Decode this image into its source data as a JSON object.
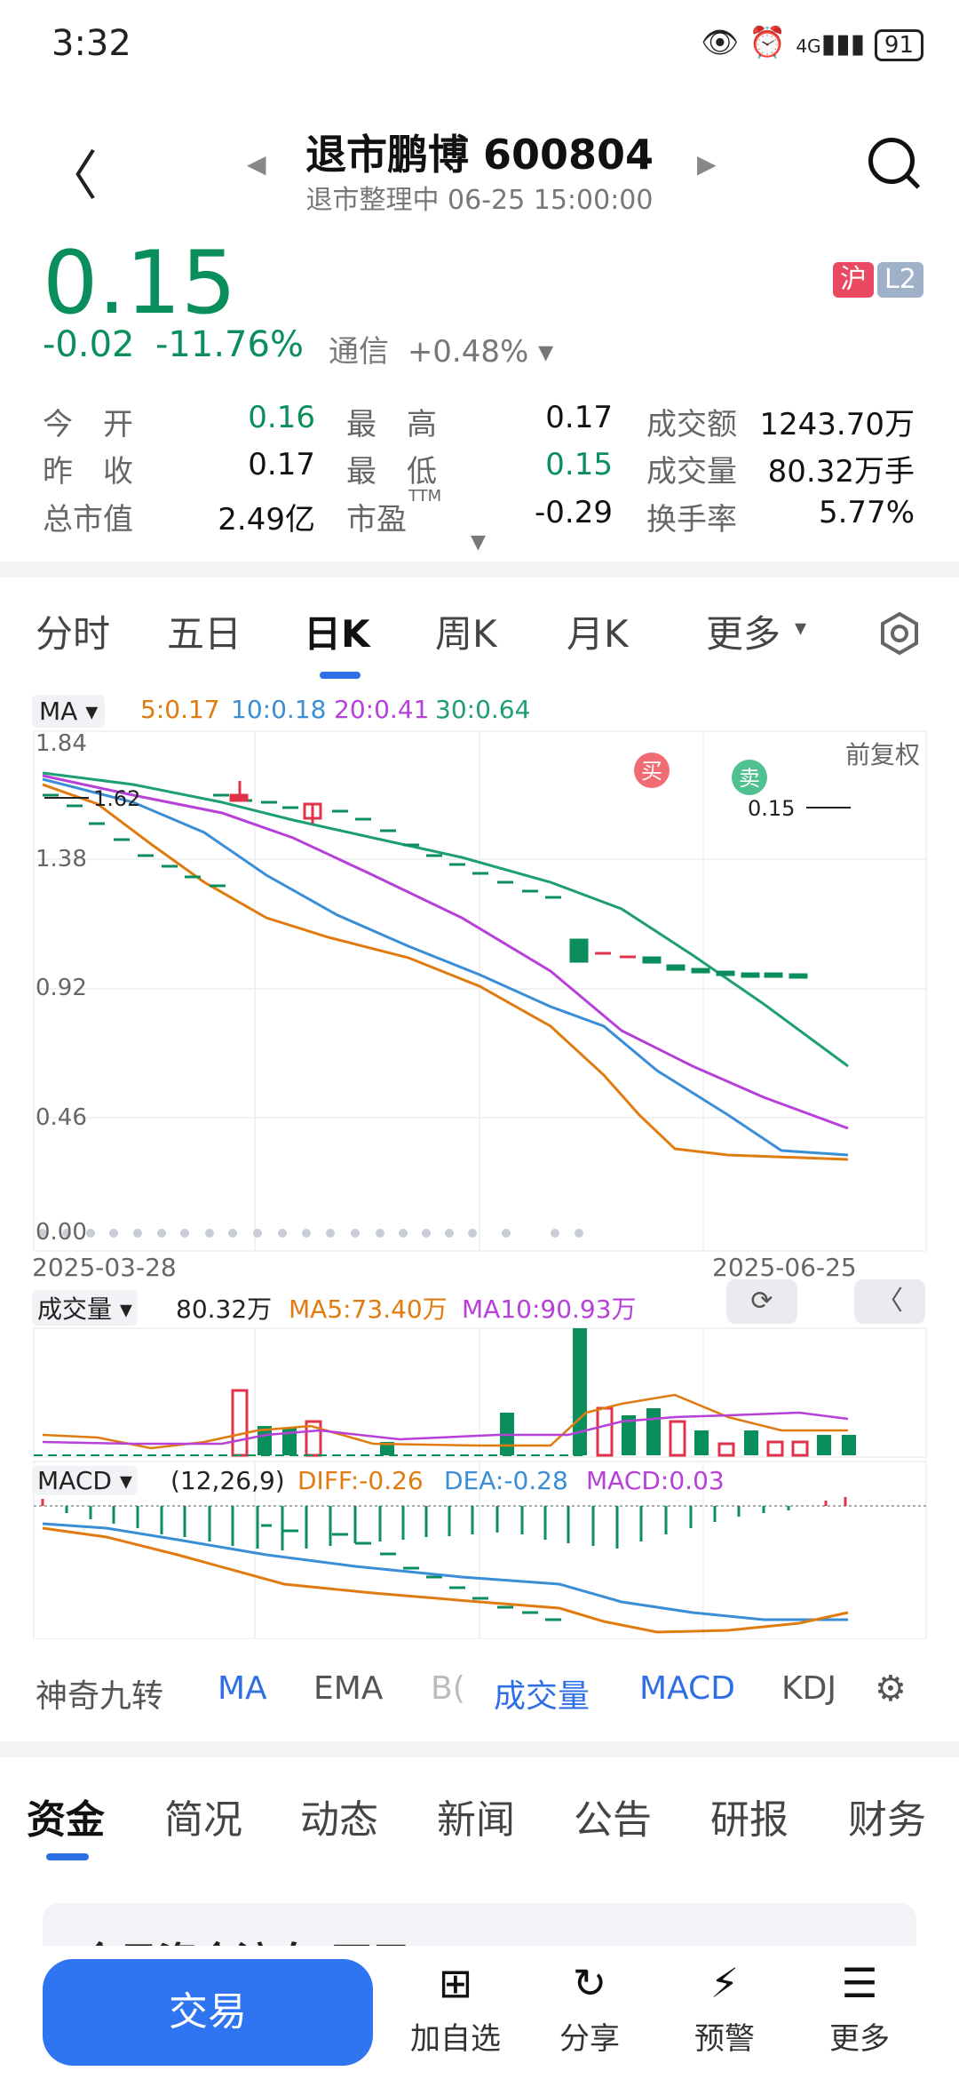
{
  "status": {
    "time": "3:32",
    "battery": "91",
    "signal": "4G"
  },
  "header": {
    "name_code": "退市鹏博 600804",
    "sub": "退市整理中 06-25 15:00:00"
  },
  "quote": {
    "price": "0.15",
    "change": "-0.02",
    "change_pct": "-11.76%",
    "related": "通信",
    "related_pct": "+0.48%",
    "badge_market": "沪",
    "badge_level": "L2"
  },
  "stats": [
    {
      "label": "今　开",
      "value": "0.16",
      "color": "green"
    },
    {
      "label": "最　高",
      "value": "0.17",
      "color": "black"
    },
    {
      "label": "成交额",
      "value": "1243.70万",
      "color": "black"
    },
    {
      "label": "昨　收",
      "value": "0.17",
      "color": "black"
    },
    {
      "label": "最　低",
      "value": "0.15",
      "color": "green"
    },
    {
      "label": "成交量",
      "value": "80.32万手",
      "color": "black"
    },
    {
      "label": "总市值",
      "value": "2.49亿",
      "color": "black"
    },
    {
      "label": "市盈",
      "value": "-0.29",
      "color": "black"
    },
    {
      "label": "换手率",
      "value": "5.77%",
      "color": "black"
    }
  ],
  "pe_sup": "TTM",
  "ktabs": [
    "分时",
    "五日",
    "日K",
    "周K",
    "月K",
    "更多"
  ],
  "ma": {
    "label": "MA",
    "ma5": "5:0.17",
    "ma10": "10:0.18",
    "ma20": "20:0.41",
    "ma30": "30:0.64"
  },
  "chart": {
    "adjust": "前复权",
    "yticks": [
      "1.84",
      "1.38",
      "0.92",
      "0.46",
      "0.00"
    ],
    "start_date": "2025-03-28",
    "end_date": "2025-06-25",
    "high_marker": "1.62",
    "low_marker": "0.15",
    "buy_marker": "买",
    "sell_marker": "卖"
  },
  "volume": {
    "label": "成交量",
    "value": "80.32万",
    "ma5": "MA5:73.40万",
    "ma10": "MA10:90.93万"
  },
  "macd": {
    "label": "MACD",
    "params": "(12,26,9)",
    "diff": "DIFF:-0.26",
    "dea": "DEA:-0.28",
    "macd": "MACD:0.03"
  },
  "indicators": [
    "神奇九转",
    "MA",
    "EMA",
    "B(",
    "成交量",
    "MACD",
    "KDJ"
  ],
  "bottom_tabs": [
    "资金",
    "简况",
    "动态",
    "新闻",
    "公告",
    "研报",
    "财务"
  ],
  "card_title": "今日资金流向(万元)",
  "bottom_bar": {
    "trade": "交易",
    "add": "加自选",
    "share": "分享",
    "alert": "预警",
    "more": "更多"
  },
  "colors": {
    "up": "#e0334a",
    "down": "#0a8f5c",
    "accent": "#2f6fe6",
    "ma5": "#e07b10",
    "ma10": "#3a8ed6",
    "ma20": "#b640d8",
    "ma30": "#1e9e74"
  }
}
